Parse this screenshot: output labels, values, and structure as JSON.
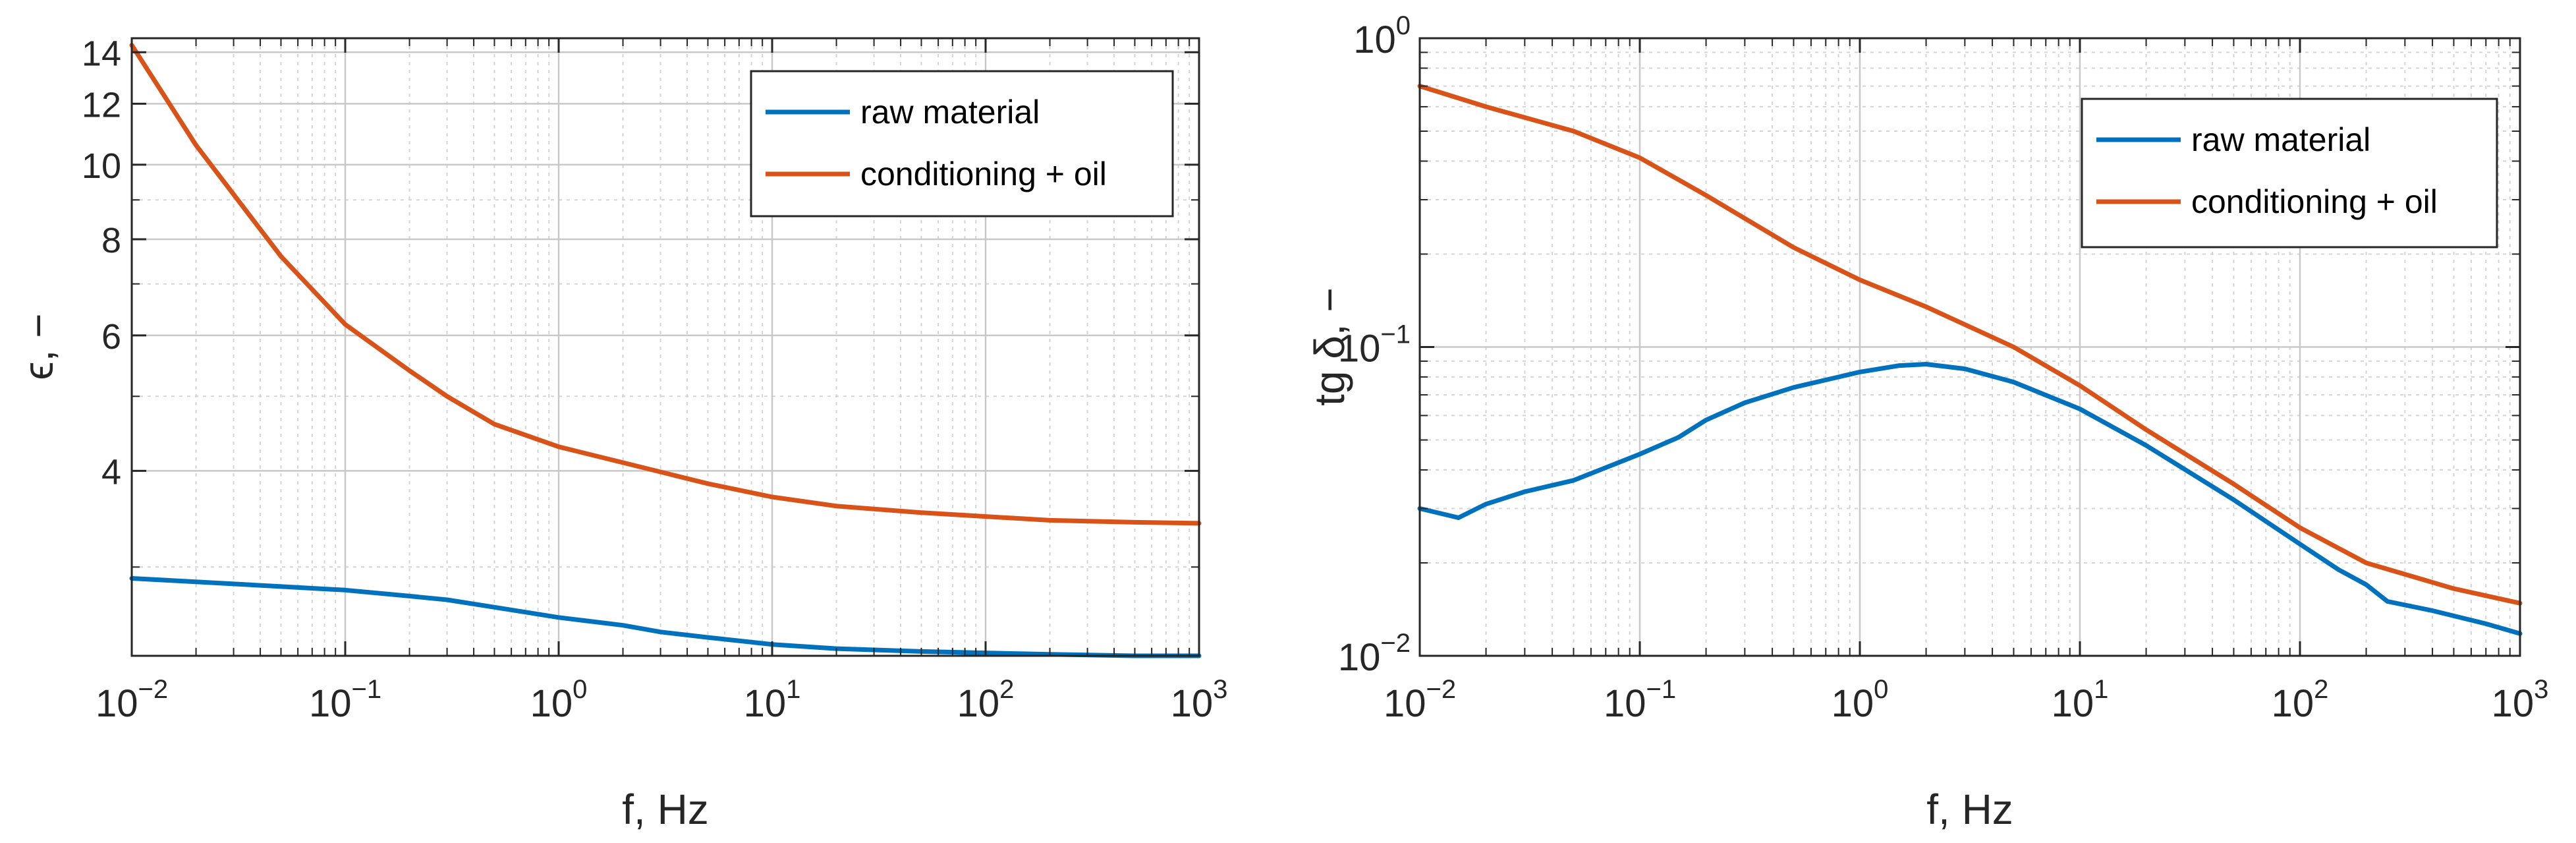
{
  "chart_data": [
    {
      "type": "line",
      "xlabel": "f, Hz",
      "ylabel": "ϵ, −",
      "x_scale": "log",
      "y_scale": "log",
      "xlim": [
        0.01,
        1000
      ],
      "ylim": [
        2.3,
        14.6
      ],
      "x_ticks": [
        0.01,
        0.1,
        1,
        10,
        100,
        1000
      ],
      "x_tick_labels": [
        [
          "10",
          "−2"
        ],
        [
          "10",
          "−1"
        ],
        [
          "10",
          "0"
        ],
        [
          "10",
          "1"
        ],
        [
          "10",
          "2"
        ],
        [
          "10",
          "3"
        ]
      ],
      "y_ticks": [
        4,
        6,
        8,
        10,
        12,
        14
      ],
      "y_tick_labels": [
        "4",
        "6",
        "8",
        "10",
        "12",
        "14"
      ],
      "grid": true,
      "legend_position": "top-right",
      "series": [
        {
          "name": "raw material",
          "color": "#0072bd",
          "x": [
            0.01,
            0.02,
            0.05,
            0.1,
            0.2,
            0.3,
            0.5,
            1,
            2,
            3,
            5,
            10,
            20,
            50,
            100,
            200,
            500,
            1000
          ],
          "y": [
            2.9,
            2.87,
            2.83,
            2.8,
            2.75,
            2.72,
            2.66,
            2.58,
            2.52,
            2.47,
            2.43,
            2.38,
            2.35,
            2.33,
            2.32,
            2.31,
            2.3,
            2.3
          ]
        },
        {
          "name": "conditioning + oil",
          "color": "#d95319",
          "x": [
            0.01,
            0.02,
            0.05,
            0.1,
            0.2,
            0.3,
            0.5,
            1,
            2,
            5,
            10,
            20,
            50,
            100,
            200,
            500,
            1000
          ],
          "y": [
            14.3,
            10.6,
            7.6,
            6.2,
            5.4,
            5.0,
            4.6,
            4.3,
            4.1,
            3.85,
            3.7,
            3.6,
            3.53,
            3.49,
            3.45,
            3.43,
            3.42
          ]
        }
      ]
    },
    {
      "type": "line",
      "xlabel": "f, Hz",
      "ylabel": "tg δ, −",
      "x_scale": "log",
      "y_scale": "log",
      "xlim": [
        0.01,
        1000
      ],
      "ylim": [
        0.01,
        1
      ],
      "x_ticks": [
        0.01,
        0.1,
        1,
        10,
        100,
        1000
      ],
      "x_tick_labels": [
        [
          "10",
          "−2"
        ],
        [
          "10",
          "−1"
        ],
        [
          "10",
          "0"
        ],
        [
          "10",
          "1"
        ],
        [
          "10",
          "2"
        ],
        [
          "10",
          "3"
        ]
      ],
      "y_ticks": [
        0.01,
        0.1,
        1
      ],
      "y_tick_labels": [
        [
          "10",
          "−2"
        ],
        [
          "10",
          "−1"
        ],
        [
          "10",
          "0"
        ]
      ],
      "grid": true,
      "legend_position": "top-right",
      "series": [
        {
          "name": "raw material",
          "color": "#0072bd",
          "x": [
            0.01,
            0.015,
            0.02,
            0.03,
            0.05,
            0.1,
            0.15,
            0.2,
            0.3,
            0.5,
            1,
            1.5,
            2,
            3,
            5,
            10,
            20,
            50,
            100,
            150,
            200,
            250,
            400,
            700,
            1000
          ],
          "y": [
            0.03,
            0.028,
            0.031,
            0.034,
            0.037,
            0.045,
            0.051,
            0.058,
            0.066,
            0.074,
            0.083,
            0.087,
            0.088,
            0.085,
            0.077,
            0.063,
            0.048,
            0.032,
            0.023,
            0.019,
            0.017,
            0.015,
            0.014,
            0.0127,
            0.0118
          ]
        },
        {
          "name": "conditioning + oil",
          "color": "#d95319",
          "x": [
            0.01,
            0.02,
            0.05,
            0.1,
            0.2,
            0.5,
            1,
            2,
            5,
            10,
            20,
            50,
            100,
            200,
            500,
            1000
          ],
          "y": [
            0.7,
            0.6,
            0.5,
            0.41,
            0.31,
            0.21,
            0.165,
            0.135,
            0.1,
            0.075,
            0.054,
            0.036,
            0.026,
            0.02,
            0.0165,
            0.0148
          ]
        }
      ]
    }
  ]
}
